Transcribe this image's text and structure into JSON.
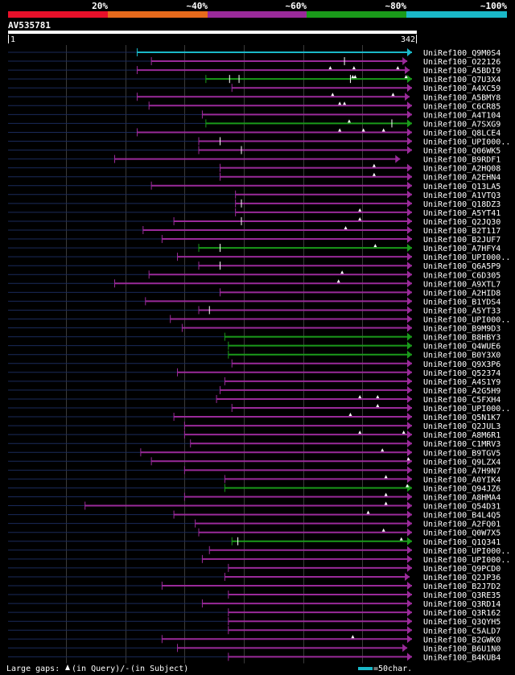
{
  "query": {
    "name": "AV535781",
    "start": "1",
    "end": "342",
    "length": 342
  },
  "identity_legend": [
    {
      "label": "20%",
      "color": "#e8102a"
    },
    {
      "label": "~40%",
      "color": "#e66a1c"
    },
    {
      "label": "~60%",
      "color": "#9a2a9a"
    },
    {
      "label": "~80%",
      "color": "#1a9a1a"
    },
    {
      "label": "~100%",
      "color": "#1ab8c8"
    }
  ],
  "footer": {
    "large_gaps_text": "Large gaps:",
    "gap_query_text": "(in Query)/-",
    "gap_subject_text": "(in Subject)",
    "scale_text": "=50char."
  },
  "chart_data": {
    "type": "alignment-overview",
    "x_unit": "query residue",
    "xlim": [
      1,
      342
    ],
    "grid_step": 50,
    "hits": [
      {
        "name": "UniRef100_Q9M0S4",
        "start": 110,
        "end": 342,
        "color": "#1ab8c8",
        "arrow": true,
        "ticks": [],
        "gaps": []
      },
      {
        "name": "UniRef100_O22126",
        "start": 122,
        "end": 338,
        "color": "#9a2a9a",
        "arrow": true,
        "ticks": [
          285
        ],
        "gaps": []
      },
      {
        "name": "UniRef100_A5BDI9",
        "start": 110,
        "end": 340,
        "color": "#9a2a9a",
        "arrow": true,
        "ticks": [],
        "gaps": [
          273,
          293,
          330
        ]
      },
      {
        "name": "UniRef100_Q7U3X4",
        "start": 168,
        "end": 342,
        "color": "#1a9a1a",
        "arrow": true,
        "ticks": [
          188,
          196,
          290
        ],
        "gaps": [
          292,
          294,
          337
        ]
      },
      {
        "name": "UniRef100_A4XC59",
        "start": 190,
        "end": 342,
        "color": "#9a2a9a",
        "arrow": true,
        "ticks": [],
        "gaps": []
      },
      {
        "name": "UniRef100_A5BMY8",
        "start": 110,
        "end": 340,
        "color": "#9a2a9a",
        "arrow": true,
        "ticks": [],
        "gaps": [
          275,
          326
        ]
      },
      {
        "name": "UniRef100_C6CR85",
        "start": 120,
        "end": 342,
        "color": "#9a2a9a",
        "arrow": true,
        "ticks": [],
        "gaps": [
          281,
          285
        ]
      },
      {
        "name": "UniRef100_A4T104",
        "start": 165,
        "end": 342,
        "color": "#9a2a9a",
        "arrow": true,
        "ticks": [],
        "gaps": []
      },
      {
        "name": "UniRef100_A7SXG9",
        "start": 168,
        "end": 342,
        "color": "#1a9a1a",
        "arrow": true,
        "ticks": [
          325
        ],
        "gaps": [
          289
        ]
      },
      {
        "name": "UniRef100_Q8LCE4",
        "start": 110,
        "end": 342,
        "color": "#9a2a9a",
        "arrow": true,
        "ticks": [],
        "gaps": [
          281,
          301,
          318
        ]
      },
      {
        "name": "UniRef100_UPI000..",
        "start": 162,
        "end": 342,
        "color": "#9a2a9a",
        "arrow": true,
        "ticks": [
          180
        ],
        "gaps": []
      },
      {
        "name": "UniRef100_Q06WK5",
        "start": 162,
        "end": 342,
        "color": "#9a2a9a",
        "arrow": true,
        "ticks": [
          198
        ],
        "gaps": []
      },
      {
        "name": "UniRef100_B9RDF1",
        "start": 91,
        "end": 332,
        "color": "#9a2a9a",
        "arrow": true,
        "ticks": [],
        "gaps": []
      },
      {
        "name": "UniRef100_A2HQ08",
        "start": 180,
        "end": 342,
        "color": "#9a2a9a",
        "arrow": true,
        "ticks": [],
        "gaps": [
          310
        ]
      },
      {
        "name": "UniRef100_A2EHN4",
        "start": 180,
        "end": 342,
        "color": "#9a2a9a",
        "arrow": true,
        "ticks": [],
        "gaps": [
          310
        ]
      },
      {
        "name": "UniRef100_Q13LA5",
        "start": 122,
        "end": 342,
        "color": "#9a2a9a",
        "arrow": true,
        "ticks": [],
        "gaps": []
      },
      {
        "name": "UniRef100_A1VTQ3",
        "start": 193,
        "end": 342,
        "color": "#9a2a9a",
        "arrow": true,
        "ticks": [],
        "gaps": []
      },
      {
        "name": "UniRef100_Q18DZ3",
        "start": 193,
        "end": 342,
        "color": "#9a2a9a",
        "arrow": true,
        "ticks": [
          198
        ],
        "gaps": []
      },
      {
        "name": "UniRef100_A5YT41",
        "start": 193,
        "end": 342,
        "color": "#9a2a9a",
        "arrow": true,
        "ticks": [],
        "gaps": [
          298
        ]
      },
      {
        "name": "UniRef100_Q2JQ30",
        "start": 141,
        "end": 342,
        "color": "#9a2a9a",
        "arrow": true,
        "ticks": [
          198
        ],
        "gaps": [
          298
        ]
      },
      {
        "name": "UniRef100_B2T117",
        "start": 115,
        "end": 342,
        "color": "#9a2a9a",
        "arrow": true,
        "ticks": [],
        "gaps": [
          286
        ]
      },
      {
        "name": "UniRef100_B2JUF7",
        "start": 131,
        "end": 342,
        "color": "#9a2a9a",
        "arrow": true,
        "ticks": [],
        "gaps": []
      },
      {
        "name": "UniRef100_A7HFY4",
        "start": 162,
        "end": 342,
        "color": "#1a9a1a",
        "arrow": true,
        "ticks": [
          180
        ],
        "gaps": [
          311
        ]
      },
      {
        "name": "UniRef100_UPI000..",
        "start": 144,
        "end": 342,
        "color": "#9a2a9a",
        "arrow": true,
        "ticks": [],
        "gaps": []
      },
      {
        "name": "UniRef100_Q6A5P9",
        "start": 162,
        "end": 342,
        "color": "#9a2a9a",
        "arrow": true,
        "ticks": [
          180
        ],
        "gaps": []
      },
      {
        "name": "UniRef100_C6D305",
        "start": 120,
        "end": 342,
        "color": "#9a2a9a",
        "arrow": true,
        "ticks": [],
        "gaps": [
          283
        ]
      },
      {
        "name": "UniRef100_A9XTL7",
        "start": 91,
        "end": 342,
        "color": "#9a2a9a",
        "arrow": true,
        "ticks": [],
        "gaps": [
          280
        ]
      },
      {
        "name": "UniRef100_A2HID8",
        "start": 180,
        "end": 342,
        "color": "#9a2a9a",
        "arrow": true,
        "ticks": [],
        "gaps": []
      },
      {
        "name": "UniRef100_B1YDS4",
        "start": 117,
        "end": 342,
        "color": "#9a2a9a",
        "arrow": true,
        "ticks": [],
        "gaps": []
      },
      {
        "name": "UniRef100_A5YT33",
        "start": 162,
        "end": 342,
        "color": "#9a2a9a",
        "arrow": true,
        "ticks": [
          171
        ],
        "gaps": []
      },
      {
        "name": "UniRef100_UPI000..",
        "start": 138,
        "end": 342,
        "color": "#9a2a9a",
        "arrow": true,
        "ticks": [],
        "gaps": []
      },
      {
        "name": "UniRef100_B9M9D3",
        "start": 148,
        "end": 342,
        "color": "#9a2a9a",
        "arrow": true,
        "ticks": [],
        "gaps": []
      },
      {
        "name": "UniRef100_B8HBY3",
        "start": 184,
        "end": 342,
        "color": "#1a9a1a",
        "arrow": true,
        "ticks": [],
        "gaps": []
      },
      {
        "name": "UniRef100_Q4WUE6",
        "start": 187,
        "end": 342,
        "color": "#1a9a1a",
        "arrow": true,
        "ticks": [],
        "gaps": []
      },
      {
        "name": "UniRef100_B0Y3X0",
        "start": 187,
        "end": 342,
        "color": "#1a9a1a",
        "arrow": true,
        "ticks": [],
        "gaps": []
      },
      {
        "name": "UniRef100_Q9X3P6",
        "start": 190,
        "end": 342,
        "color": "#9a2a9a",
        "arrow": true,
        "ticks": [],
        "gaps": []
      },
      {
        "name": "UniRef100_Q52374",
        "start": 144,
        "end": 342,
        "color": "#9a2a9a",
        "arrow": true,
        "ticks": [],
        "gaps": []
      },
      {
        "name": "UniRef100_A4S1Y9",
        "start": 184,
        "end": 342,
        "color": "#9a2a9a",
        "arrow": true,
        "ticks": [],
        "gaps": []
      },
      {
        "name": "UniRef100_A2G5H9",
        "start": 180,
        "end": 342,
        "color": "#9a2a9a",
        "arrow": true,
        "ticks": [],
        "gaps": []
      },
      {
        "name": "UniRef100_C5FXH4",
        "start": 177,
        "end": 342,
        "color": "#9a2a9a",
        "arrow": true,
        "ticks": [],
        "gaps": [
          298,
          313
        ]
      },
      {
        "name": "UniRef100_UPI000..",
        "start": 190,
        "end": 342,
        "color": "#9a2a9a",
        "arrow": true,
        "ticks": [],
        "gaps": [
          313
        ]
      },
      {
        "name": "UniRef100_Q5N1K7",
        "start": 141,
        "end": 342,
        "color": "#9a2a9a",
        "arrow": true,
        "ticks": [],
        "gaps": [
          290
        ]
      },
      {
        "name": "UniRef100_Q2JUL3",
        "start": 150,
        "end": 342,
        "color": "#9a2a9a",
        "arrow": true,
        "ticks": [],
        "gaps": []
      },
      {
        "name": "UniRef100_A8M6R1",
        "start": 150,
        "end": 342,
        "color": "#9a2a9a",
        "arrow": true,
        "ticks": [],
        "gaps": [
          298,
          335
        ]
      },
      {
        "name": "UniRef100_C1MRV3",
        "start": 155,
        "end": 342,
        "color": "#9a2a9a",
        "arrow": true,
        "ticks": [],
        "gaps": []
      },
      {
        "name": "UniRef100_B9TGV5",
        "start": 113,
        "end": 342,
        "color": "#9a2a9a",
        "arrow": true,
        "ticks": [],
        "gaps": [
          317
        ]
      },
      {
        "name": "UniRef100_Q9LZX4",
        "start": 122,
        "end": 342,
        "color": "#9a2a9a",
        "arrow": true,
        "ticks": [],
        "gaps": [
          339
        ]
      },
      {
        "name": "UniRef100_A7H9N7",
        "start": 150,
        "end": 342,
        "color": "#9a2a9a",
        "arrow": true,
        "ticks": [],
        "gaps": []
      },
      {
        "name": "UniRef100_A0YIK4",
        "start": 184,
        "end": 342,
        "color": "#9a2a9a",
        "arrow": true,
        "ticks": [],
        "gaps": [
          320
        ]
      },
      {
        "name": "UniRef100_Q94JZ6",
        "start": 184,
        "end": 342,
        "color": "#1a9a1a",
        "arrow": true,
        "ticks": [],
        "gaps": [
          338
        ]
      },
      {
        "name": "UniRef100_A8HMA4",
        "start": 150,
        "end": 342,
        "color": "#9a2a9a",
        "arrow": true,
        "ticks": [],
        "gaps": [
          320
        ]
      },
      {
        "name": "UniRef100_Q54D31",
        "start": 66,
        "end": 342,
        "color": "#9a2a9a",
        "arrow": true,
        "ticks": [],
        "gaps": [
          320
        ]
      },
      {
        "name": "UniRef100_B4L4Q5",
        "start": 141,
        "end": 342,
        "color": "#9a2a9a",
        "arrow": true,
        "ticks": [],
        "gaps": [
          305
        ]
      },
      {
        "name": "UniRef100_A2FQ01",
        "start": 159,
        "end": 342,
        "color": "#9a2a9a",
        "arrow": true,
        "ticks": [],
        "gaps": []
      },
      {
        "name": "UniRef100_Q0W7X5",
        "start": 162,
        "end": 342,
        "color": "#9a2a9a",
        "arrow": true,
        "ticks": [],
        "gaps": [
          318
        ]
      },
      {
        "name": "UniRef100_Q1Q341",
        "start": 190,
        "end": 342,
        "color": "#1a9a1a",
        "arrow": true,
        "ticks": [
          195
        ],
        "gaps": [
          333
        ]
      },
      {
        "name": "UniRef100_UPI000..",
        "start": 171,
        "end": 342,
        "color": "#9a2a9a",
        "arrow": true,
        "ticks": [],
        "gaps": []
      },
      {
        "name": "UniRef100_UPI000..",
        "start": 165,
        "end": 342,
        "color": "#9a2a9a",
        "arrow": true,
        "ticks": [],
        "gaps": []
      },
      {
        "name": "UniRef100_Q9PCD0",
        "start": 187,
        "end": 342,
        "color": "#9a2a9a",
        "arrow": true,
        "ticks": [],
        "gaps": []
      },
      {
        "name": "UniRef100_Q2JP36",
        "start": 184,
        "end": 340,
        "color": "#9a2a9a",
        "arrow": true,
        "ticks": [],
        "gaps": []
      },
      {
        "name": "UniRef100_B2J7D2",
        "start": 131,
        "end": 342,
        "color": "#9a2a9a",
        "arrow": true,
        "ticks": [],
        "gaps": []
      },
      {
        "name": "UniRef100_Q3RE35",
        "start": 187,
        "end": 342,
        "color": "#9a2a9a",
        "arrow": true,
        "ticks": [],
        "gaps": []
      },
      {
        "name": "UniRef100_Q3RD14",
        "start": 165,
        "end": 342,
        "color": "#9a2a9a",
        "arrow": true,
        "ticks": [],
        "gaps": []
      },
      {
        "name": "UniRef100_Q3R162",
        "start": 187,
        "end": 342,
        "color": "#9a2a9a",
        "arrow": true,
        "ticks": [],
        "gaps": []
      },
      {
        "name": "UniRef100_Q3QYH5",
        "start": 187,
        "end": 342,
        "color": "#9a2a9a",
        "arrow": true,
        "ticks": [],
        "gaps": []
      },
      {
        "name": "UniRef100_C5ALD7",
        "start": 187,
        "end": 342,
        "color": "#9a2a9a",
        "arrow": true,
        "ticks": [],
        "gaps": []
      },
      {
        "name": "UniRef100_B2GWK0",
        "start": 131,
        "end": 342,
        "color": "#9a2a9a",
        "arrow": true,
        "ticks": [],
        "gaps": [
          292
        ]
      },
      {
        "name": "UniRef100_B6U1N0",
        "start": 144,
        "end": 338,
        "color": "#9a2a9a",
        "arrow": true,
        "ticks": [],
        "gaps": []
      },
      {
        "name": "UniRef100_B4KUB4",
        "start": 187,
        "end": 342,
        "color": "#9a2a9a",
        "arrow": true,
        "ticks": [],
        "gaps": []
      }
    ]
  }
}
